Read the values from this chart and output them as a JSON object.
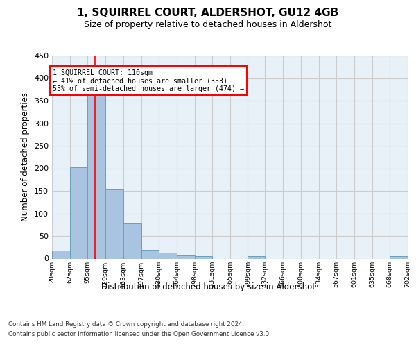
{
  "title": "1, SQUIRREL COURT, ALDERSHOT, GU12 4GB",
  "subtitle": "Size of property relative to detached houses in Aldershot",
  "xlabel": "Distribution of detached houses by size in Aldershot",
  "ylabel": "Number of detached properties",
  "footer_line1": "Contains HM Land Registry data © Crown copyright and database right 2024.",
  "footer_line2": "Contains public sector information licensed under the Open Government Licence v3.0.",
  "bin_edges": [
    28,
    62,
    95,
    129,
    163,
    197,
    230,
    264,
    298,
    331,
    365,
    399,
    432,
    466,
    500,
    534,
    567,
    601,
    635,
    668,
    702
  ],
  "bar_heights": [
    17,
    202,
    365,
    153,
    78,
    20,
    13,
    7,
    5,
    0,
    0,
    5,
    0,
    0,
    0,
    0,
    0,
    0,
    0,
    5
  ],
  "bar_color": "#a8c4e0",
  "bar_edgecolor": "#6a9fc0",
  "grid_color": "#cccccc",
  "bg_color": "#e8f0f8",
  "annotation_line1": "1 SQUIRREL COURT: 110sqm",
  "annotation_line2": "← 41% of detached houses are smaller (353)",
  "annotation_line3": "55% of semi-detached houses are larger (474) →",
  "annotation_box_color": "white",
  "annotation_box_edgecolor": "red",
  "red_line_x": 110,
  "ylim": [
    0,
    450
  ],
  "yticks": [
    0,
    50,
    100,
    150,
    200,
    250,
    300,
    350,
    400,
    450
  ]
}
